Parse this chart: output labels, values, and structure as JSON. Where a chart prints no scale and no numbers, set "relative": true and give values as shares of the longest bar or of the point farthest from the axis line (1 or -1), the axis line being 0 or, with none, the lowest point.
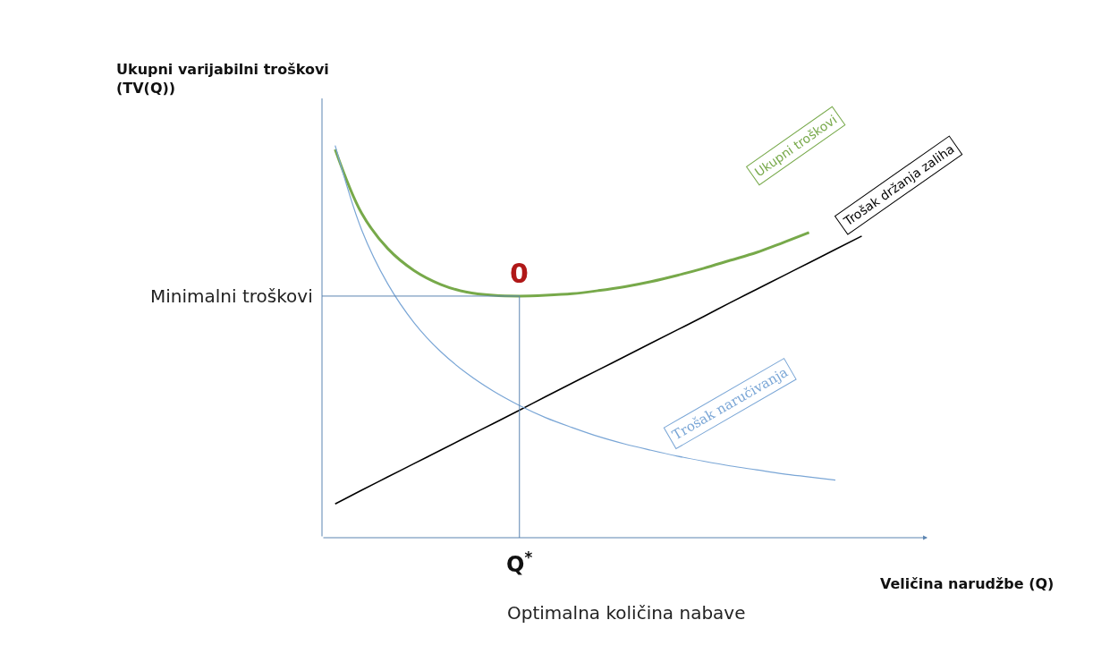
{
  "chart_data": {
    "type": "line",
    "relative": true,
    "ylabel": "Ukupni varijabilni troškovi (TV(Q))",
    "xlabel": "Veličina narudžbe (Q)",
    "categories": [
      null,
      null,
      null,
      null,
      null,
      null,
      null,
      null,
      null,
      null,
      null,
      null,
      null,
      null,
      null,
      null,
      null,
      null,
      null,
      null,
      null
    ],
    "series": [
      {
        "name": "Ukupni troškovi",
        "color": "#77a94a",
        "values": [
          0.99,
          0.828,
          0.737,
          0.681,
          0.646,
          0.626,
          0.618,
          0.616,
          0.618,
          0.622,
          0.63,
          0.64,
          0.653,
          0.669,
          0.687,
          0.707,
          0.727,
          0.752,
          0.778,
          null,
          null
        ]
      },
      {
        "name": "Trošak držanja zaliha",
        "color": "#000000",
        "values": [
          0.086,
          0.121,
          0.155,
          0.189,
          0.223,
          0.257,
          0.291,
          0.325,
          0.36,
          0.394,
          0.428,
          0.462,
          0.496,
          0.53,
          0.564,
          0.599,
          0.633,
          0.667,
          0.701,
          0.735,
          0.769
        ]
      },
      {
        "name": "Trošak naručivanja",
        "color": "#7aa6d6",
        "values": [
          1.0,
          0.786,
          0.647,
          0.548,
          0.475,
          0.419,
          0.374,
          0.337,
          0.306,
          0.281,
          0.258,
          0.239,
          0.223,
          0.208,
          0.195,
          0.183,
          0.173,
          0.163,
          0.155,
          0.147,
          null
        ]
      }
    ],
    "ref_lines": [
      {
        "axis": "y",
        "value": 0.616,
        "label": "Minimalni troškovi",
        "color": "#5b84b1"
      }
    ],
    "annotations": [
      "0",
      "Q$^{*}$",
      "Optimalna količina nabave"
    ],
    "grid": false,
    "legend": false,
    "tick_labels": false,
    "marker": "none",
    "line_style": "solid"
  }
}
